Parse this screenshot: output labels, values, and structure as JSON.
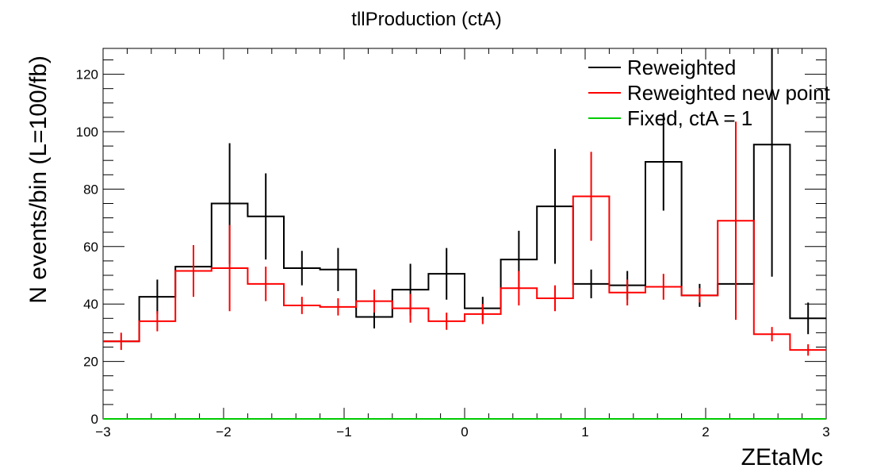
{
  "chart_data": {
    "type": "histogram",
    "title": "tllProduction (ctA)",
    "xlabel": "ZEtaMc",
    "ylabel": "N events/bin (L=100/fb)",
    "xlim": [
      -3,
      3
    ],
    "ylim": [
      0,
      129
    ],
    "x_ticks": [
      -3,
      -2,
      -1,
      0,
      1,
      2,
      3
    ],
    "x_tick_labels": [
      "−3",
      "−2",
      "−1",
      "0",
      "1",
      "2",
      "3"
    ],
    "y_ticks": [
      0,
      20,
      40,
      60,
      80,
      100,
      120
    ],
    "y_tick_labels": [
      "0",
      "20",
      "40",
      "60",
      "80",
      "100",
      "120"
    ],
    "bin_edges": [
      -3.0,
      -2.7,
      -2.4,
      -2.1,
      -1.8,
      -1.5,
      -1.2,
      -0.9,
      -0.6,
      -0.3,
      0.0,
      0.3,
      0.6,
      0.9,
      1.2,
      1.5,
      1.8,
      2.1,
      2.4,
      2.7,
      3.0
    ],
    "legend_position": "top-right",
    "series": [
      {
        "name": "Reweighted",
        "color": "#000000",
        "values": [
          27,
          42.5,
          53,
          75,
          70.5,
          52.5,
          52,
          35.5,
          45,
          50.5,
          38.5,
          55.5,
          74,
          47,
          46.5,
          89.5,
          43,
          47,
          95.5,
          35
        ],
        "errors": [
          0,
          6,
          0,
          21,
          15,
          6,
          7.5,
          4,
          9,
          9,
          4,
          10,
          20,
          5,
          5,
          17,
          4,
          0,
          46,
          5.5
        ]
      },
      {
        "name": "Reweighted new point",
        "color": "#ff0000",
        "values": [
          27,
          34,
          51.5,
          52.5,
          47,
          39.5,
          39,
          41,
          38.5,
          34,
          36.5,
          45.5,
          42,
          77.5,
          44,
          46,
          43,
          69,
          29.5,
          24
        ],
        "errors": [
          3,
          3.5,
          9,
          15,
          6,
          3,
          3,
          4,
          5,
          3,
          3.5,
          6,
          4.5,
          15.5,
          4.5,
          4.5,
          2.5,
          34.5,
          2.5,
          2
        ]
      },
      {
        "name": "Fixed, ctA = 1",
        "color": "#00cc00",
        "values": [
          0,
          0,
          0,
          0,
          0,
          0,
          0,
          0,
          0,
          0,
          0,
          0,
          0,
          0,
          0,
          0,
          0,
          0,
          0,
          0
        ],
        "errors": [
          0,
          0,
          0,
          0,
          0,
          0,
          0,
          0,
          0,
          0,
          0,
          0,
          0,
          0,
          0,
          0,
          0,
          0,
          0,
          0
        ]
      }
    ]
  }
}
